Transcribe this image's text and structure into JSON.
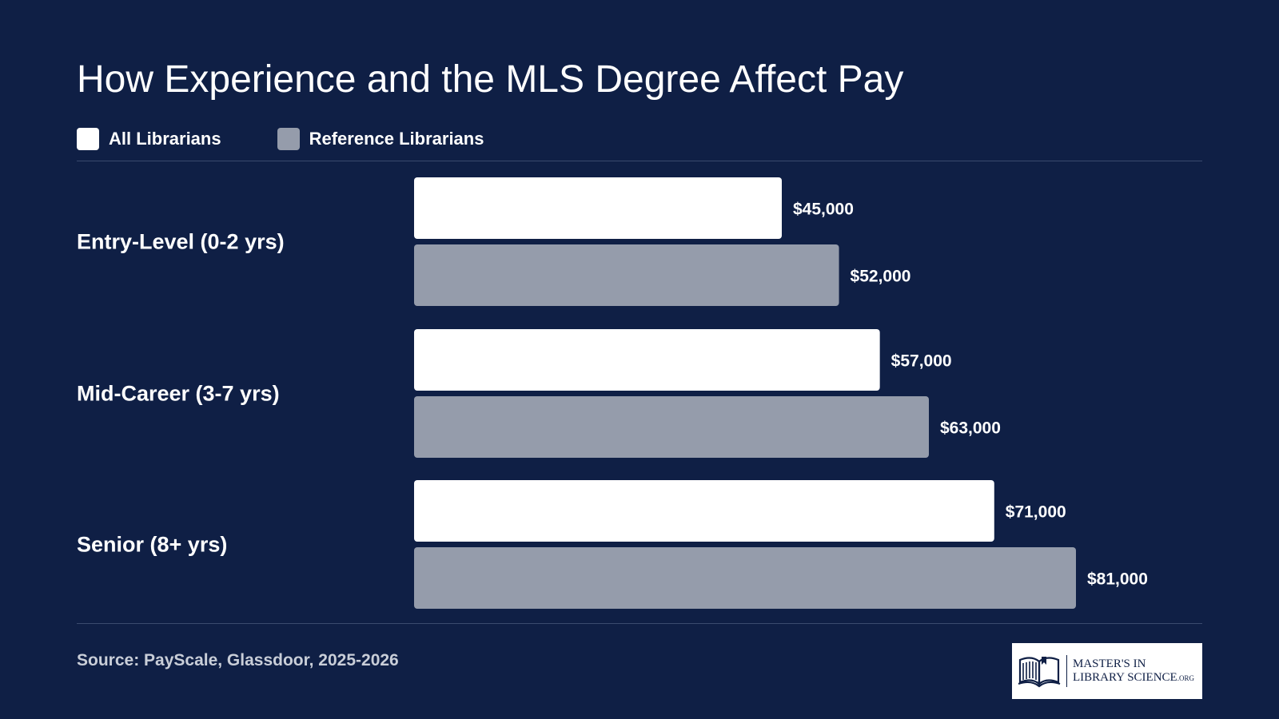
{
  "title": "How Experience and the MLS Degree Affect Pay",
  "legend": [
    {
      "label": "All Librarians",
      "color": "#ffffff"
    },
    {
      "label": "Reference Librarians",
      "color": "#959cab"
    }
  ],
  "colors": {
    "background": "#0f1f45",
    "all_librarians": "#ffffff",
    "reference_librarians": "#959cab",
    "divider": "#3a4a6e",
    "source_text": "#c9ced8"
  },
  "chart_data": {
    "type": "bar",
    "orientation": "horizontal",
    "title": "How Experience and the MLS Degree Affect Pay",
    "categories": [
      "Entry-Level (0-2 yrs)",
      "Mid-Career (3-7 yrs)",
      "Senior (8+ yrs)"
    ],
    "series": [
      {
        "name": "All Librarians",
        "values": [
          45000,
          57000,
          71000
        ],
        "labels": [
          "$45,000",
          "$57,000",
          "$71,000"
        ]
      },
      {
        "name": "Reference Librarians",
        "values": [
          52000,
          63000,
          81000
        ],
        "labels": [
          "$52,000",
          "$63,000",
          "$81,000"
        ]
      }
    ],
    "legend_position": "top-left",
    "grid": false
  },
  "source": "Source: PayScale, Glassdoor, 2025-2026",
  "logo": {
    "line1": "MASTER'S IN",
    "line2": "LIBRARY SCIENCE",
    "suffix": ".ORG",
    "icon": "open-book-icon"
  }
}
